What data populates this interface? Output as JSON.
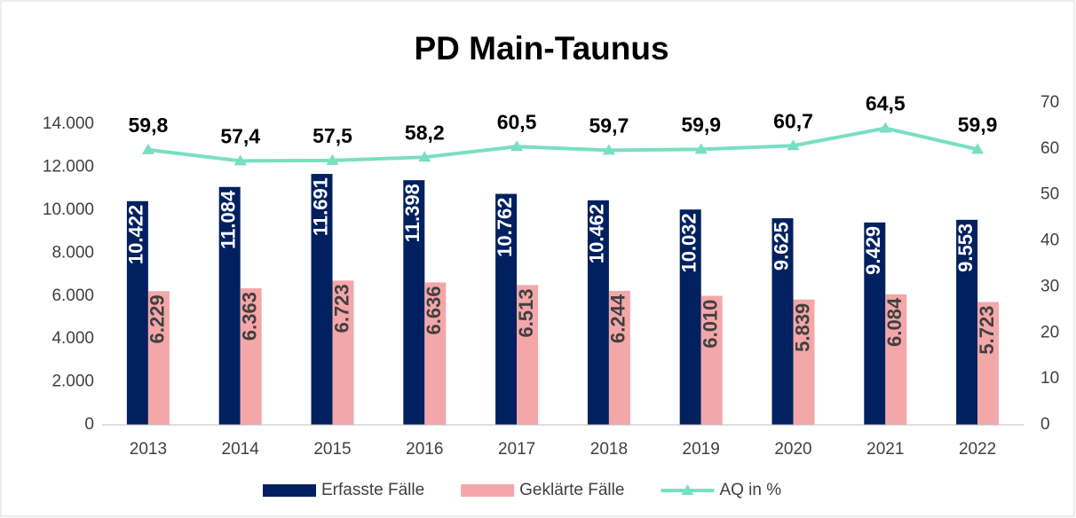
{
  "chart_data": {
    "type": "bar",
    "title": "PD Main-Taunus",
    "categories": [
      "2013",
      "2014",
      "2015",
      "2016",
      "2017",
      "2018",
      "2019",
      "2020",
      "2021",
      "2022"
    ],
    "series": [
      {
        "name": "Erfasste Fälle",
        "color": "#002060",
        "type": "bar",
        "values": [
          10422,
          11084,
          11691,
          11398,
          10762,
          10462,
          10032,
          9625,
          9429,
          9553
        ],
        "value_labels": [
          "10.422",
          "11.084",
          "11.691",
          "11.398",
          "10.762",
          "10.462",
          "10.032",
          "9.625",
          "9.429",
          "9.553"
        ]
      },
      {
        "name": "Geklärte Fälle",
        "color": "#f4a7a9",
        "type": "bar",
        "values": [
          6229,
          6363,
          6723,
          6636,
          6513,
          6244,
          6010,
          5839,
          6084,
          5723
        ],
        "value_labels": [
          "6.229",
          "6.363",
          "6.723",
          "6.636",
          "6.513",
          "6.244",
          "6.010",
          "5.839",
          "6.084",
          "5.723"
        ]
      },
      {
        "name": "AQ in %",
        "color": "#79dfc1",
        "type": "line",
        "axis": "y2",
        "values": [
          59.8,
          57.4,
          57.5,
          58.2,
          60.5,
          59.7,
          59.9,
          60.7,
          64.5,
          59.9
        ],
        "value_labels": [
          "59,8",
          "57,4",
          "57,5",
          "58,2",
          "60,5",
          "59,7",
          "59,9",
          "60,7",
          "64,5",
          "59,9"
        ]
      }
    ],
    "ylim": [
      0,
      15000
    ],
    "yticks": [
      0,
      {
        "value": 2000,
        "label": "2.000"
      },
      {
        "value": 4000,
        "label": "4.000"
      },
      {
        "value": 6000,
        "label": "6.000"
      },
      {
        "value": 8000,
        "label": "8.000"
      },
      {
        "value": 10000,
        "label": "10.000"
      },
      {
        "value": 12000,
        "label": "12.000"
      },
      {
        "value": 14000,
        "label": "14.000"
      }
    ],
    "y2lim": [
      0,
      70
    ],
    "y2ticks": [
      0,
      10,
      20,
      30,
      40,
      50,
      60,
      70
    ],
    "legend": "bottom"
  }
}
